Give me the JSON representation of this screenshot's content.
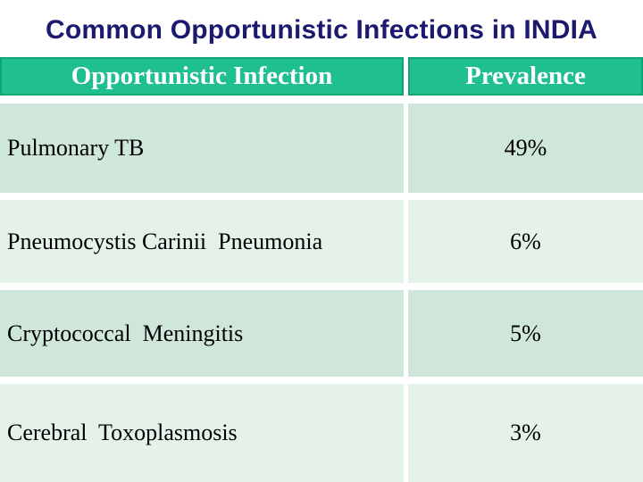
{
  "slide": {
    "title": "Common Opportunistic Infections in INDIA"
  },
  "table": {
    "columns": [
      "Opportunistic Infection",
      "Prevalence"
    ],
    "rows": [
      {
        "infection": "Pulmonary TB",
        "prevalence": "49%"
      },
      {
        "infection": "Pneumocystis Carinii  Pneumonia",
        "prevalence": "6%"
      },
      {
        "infection": "Cryptococcal  Meningitis",
        "prevalence": "5%"
      },
      {
        "infection": "Cerebral  Toxoplasmosis",
        "prevalence": "3%"
      }
    ]
  },
  "colors": {
    "background": "#ffffff",
    "title_navy": "#1b1a6e",
    "header_green": "#1fbf8f",
    "header_border": "#0ea478",
    "header_text": "#ffffff",
    "row_shade_dark": "#cfe7db",
    "row_shade_light": "#e4f2ea",
    "body_text": "#000000"
  }
}
